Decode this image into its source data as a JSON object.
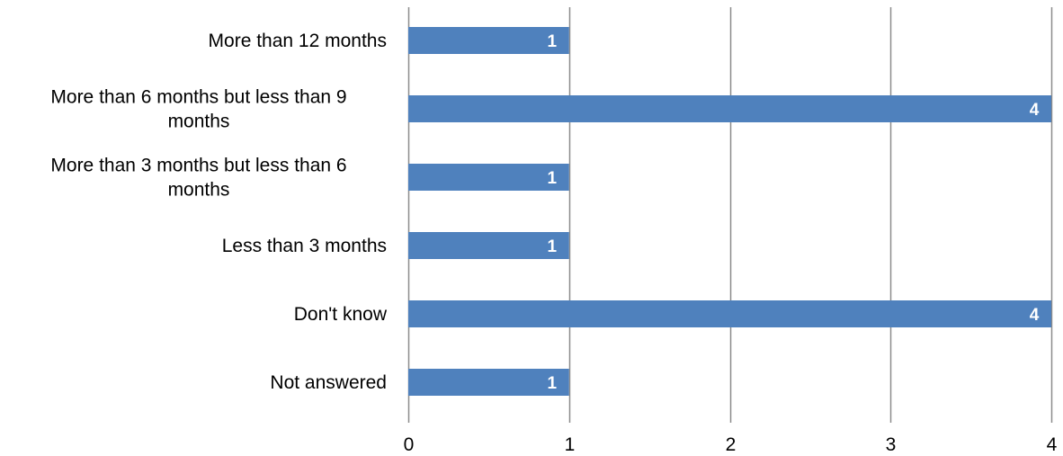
{
  "chart_data": {
    "type": "bar",
    "orientation": "horizontal",
    "categories": [
      "More than 12 months",
      "More than 6 months but less than 9 months",
      "More than 3 months but less than 6 months",
      "Less than 3 months",
      "Don't know",
      "Not answered"
    ],
    "category_label_lines": [
      [
        "More than 12 months"
      ],
      [
        "More than 6 months but less than 9",
        "months"
      ],
      [
        "More than 3 months but less than 6",
        "months"
      ],
      [
        "Less than 3 months"
      ],
      [
        "Don't know"
      ],
      [
        "Not answered"
      ]
    ],
    "values": [
      1,
      4,
      1,
      1,
      4,
      1
    ],
    "data_labels": [
      "1",
      "4",
      "1",
      "1",
      "4",
      "1"
    ],
    "xlim": [
      0,
      4
    ],
    "x_ticks": [
      "0",
      "1",
      "2",
      "3",
      "4"
    ],
    "title": "",
    "xlabel": "",
    "ylabel": "",
    "grid": "vertical",
    "legend": "none",
    "bar_color": "#4f81bd",
    "grid_color": "#8c8c8c",
    "data_label_color": "#ffffff"
  }
}
